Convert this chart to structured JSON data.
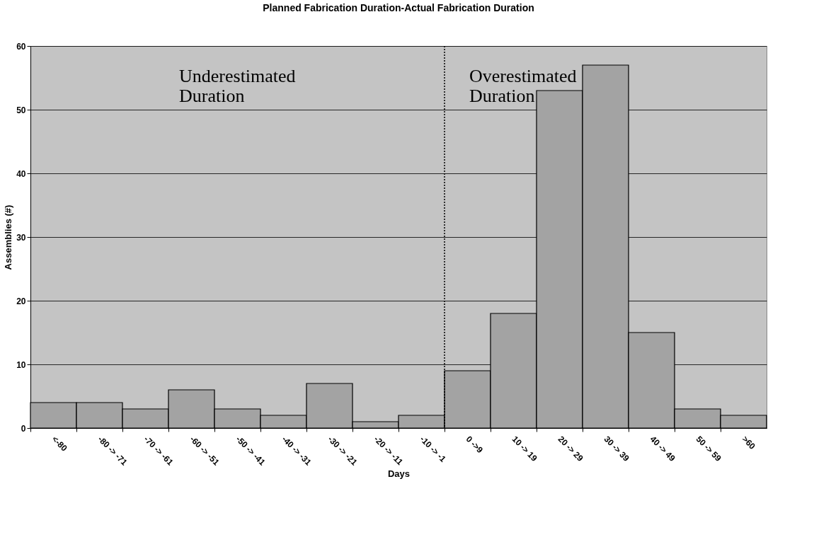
{
  "chart_data": {
    "type": "bar",
    "title": "Planned Fabrication Duration-Actual Fabrication Duration",
    "xlabel": "Days",
    "ylabel": "Assemblies (#)",
    "categories": [
      "<-80",
      "-80 -> -71",
      "-70 -> -61",
      "-60 -> -51",
      "-50 -> -41",
      "-40 -> -31",
      "-30 -> -21",
      "-20 -> -11",
      "-10 -> -1",
      "0 ->9",
      "10 -> 19",
      "20 -> 29",
      "30 -> 39",
      "40 -> 49",
      "50 -> 59",
      ">60"
    ],
    "values": [
      4,
      4,
      3,
      6,
      3,
      2,
      7,
      1,
      2,
      9,
      18,
      53,
      57,
      15,
      3,
      2
    ],
    "color": "#a3a3a3",
    "ylim": [
      0,
      60
    ],
    "yticks": [
      0,
      10,
      20,
      30,
      40,
      50,
      60
    ],
    "grid": "y",
    "ref_lines": [
      {
        "axis": "x",
        "value": "0 ->9",
        "line_style": "dotted",
        "color": "#000000"
      }
    ],
    "annotations": [
      "Underestimated Duration",
      "Overestimated Duration"
    ]
  }
}
